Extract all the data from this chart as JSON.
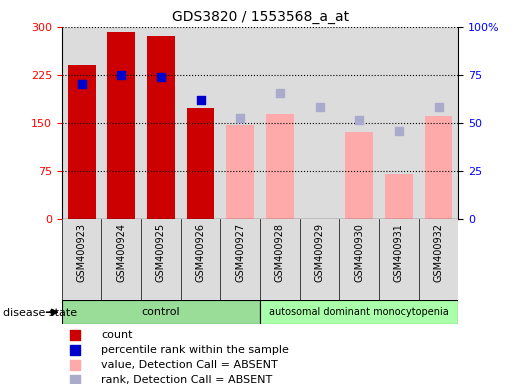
{
  "title": "GDS3820 / 1553568_a_at",
  "samples": [
    "GSM400923",
    "GSM400924",
    "GSM400925",
    "GSM400926",
    "GSM400927",
    "GSM400928",
    "GSM400929",
    "GSM400930",
    "GSM400931",
    "GSM400932"
  ],
  "count_values": [
    240,
    292,
    285,
    173,
    null,
    null,
    null,
    null,
    null,
    null
  ],
  "absent_values": [
    null,
    null,
    null,
    null,
    146,
    164,
    null,
    135,
    70,
    160
  ],
  "percentile_present": [
    210,
    225,
    222,
    185,
    null,
    null,
    null,
    null,
    null,
    null
  ],
  "percentile_absent": [
    null,
    null,
    null,
    null,
    158,
    197,
    175,
    155,
    138,
    175
  ],
  "left_ylim": [
    0,
    300
  ],
  "right_ylim": [
    0,
    100
  ],
  "left_yticks": [
    0,
    75,
    150,
    225,
    300
  ],
  "right_yticks": [
    0,
    25,
    50,
    75,
    100
  ],
  "right_yticklabels": [
    "0",
    "25",
    "50",
    "75",
    "100%"
  ],
  "n_control": 5,
  "n_disease": 5,
  "group_label_control": "control",
  "group_label_disease": "autosomal dominant monocytopenia",
  "disease_state_label": "disease state",
  "bar_color_present": "#CC0000",
  "bar_color_absent": "#FFAAAA",
  "dot_color_present": "#0000CC",
  "dot_color_absent": "#AAAACC",
  "col_bg_even": "#E8E8E8",
  "col_bg_odd": "#D8D8D8",
  "control_bg": "#99DD99",
  "disease_bg": "#AAFFAA",
  "legend_items": [
    {
      "label": "count",
      "color": "#CC0000"
    },
    {
      "label": "percentile rank within the sample",
      "color": "#0000CC"
    },
    {
      "label": "value, Detection Call = ABSENT",
      "color": "#FFAAAA"
    },
    {
      "label": "rank, Detection Call = ABSENT",
      "color": "#AAAACC"
    }
  ],
  "fig_width": 5.15,
  "fig_height": 3.84,
  "dpi": 100
}
